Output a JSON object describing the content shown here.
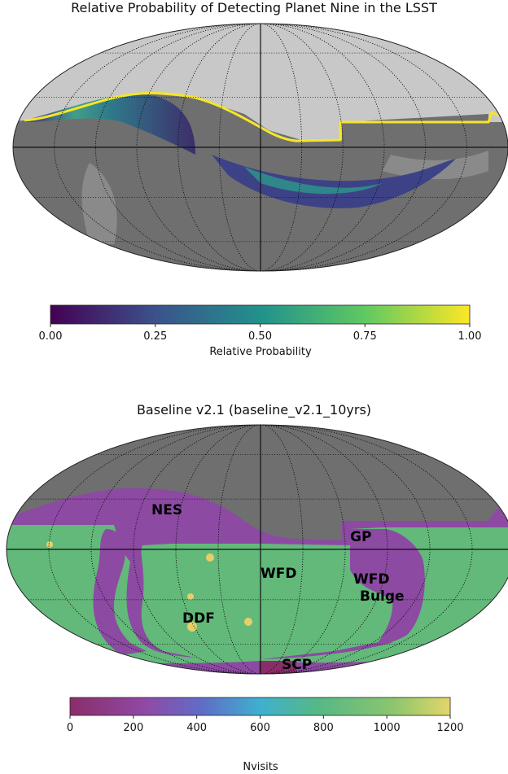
{
  "chart_data": [
    {
      "type": "heatmap",
      "title": "Relative Probability of Detecting Planet Nine in the LSST",
      "projection": "mollweide",
      "colormap": "viridis",
      "colorbar": {
        "label": "Relative Probability",
        "range": [
          0,
          1
        ],
        "ticks": [
          "0.00",
          "0.25",
          "0.50",
          "0.75",
          "1.00"
        ]
      },
      "grid": true,
      "colors": {
        "sky_background": "#6f6f6f",
        "survey_footprint": "#c8c8c8",
        "galactic_plane": "#8a8a8a",
        "highlight_edge": "#f5e52a"
      }
    },
    {
      "type": "heatmap",
      "title": "Baseline v2.1 (baseline_v2.1_10yrs)",
      "projection": "mollweide",
      "colormap": "viridis-like",
      "colorbar": {
        "label": "Nvisits",
        "range": [
          0,
          1200
        ],
        "ticks": [
          "0",
          "200",
          "400",
          "600",
          "800",
          "1000",
          "1200"
        ]
      },
      "region_labels": [
        "NES",
        "GP",
        "WFD",
        "WFD",
        "Bulge",
        "DDF",
        "SCP"
      ],
      "grid": true,
      "colors": {
        "unobserved": "#6f6f6f",
        "wfd": "#62b97a",
        "nes_gp": "#8c4aa3",
        "ddf": "#e6cf6a"
      }
    }
  ]
}
